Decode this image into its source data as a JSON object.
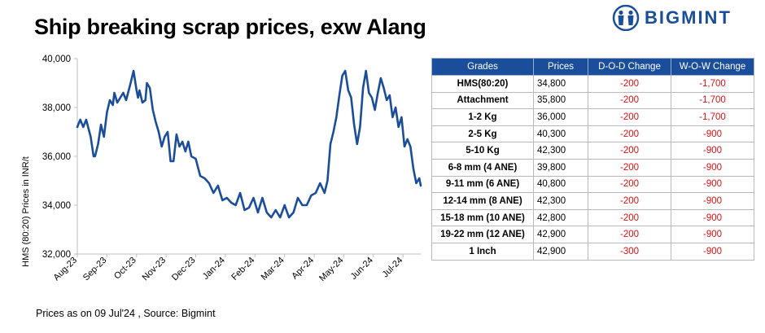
{
  "title": "Ship breaking scrap prices, exw Alang",
  "logo": {
    "text": "BIGMINT",
    "icon": "bigmint-people-icon",
    "color": "#1a4e9a"
  },
  "footer": "Prices as on 09 Jul'24 , Source: Bigmint",
  "chart_data": {
    "type": "line",
    "ylabel": "HMS (80:20) Prices in INR/t",
    "ylim": [
      32000,
      40000
    ],
    "yticks": [
      "32,000",
      "34,000",
      "36,000",
      "38,000",
      "40,000"
    ],
    "xticks": [
      "Aug-23",
      "Sep-23",
      "Oct-23",
      "Nov-23",
      "Dec-23",
      "Jan-24",
      "Feb-24",
      "Mar-24",
      "Apr-24",
      "May-24",
      "Jun-24",
      "Jul-24"
    ],
    "line_color": "#1a4e9a",
    "grid": false,
    "series": [
      {
        "x": [
          0,
          0.1,
          0.2,
          0.3,
          0.45,
          0.55,
          0.6,
          0.7,
          0.8,
          0.9,
          1.0,
          1.1,
          1.2,
          1.25,
          1.35,
          1.45,
          1.55,
          1.65,
          1.8,
          1.9,
          2.0,
          2.05,
          2.1,
          2.2,
          2.3,
          2.35,
          2.45,
          2.55,
          2.65,
          2.75,
          2.85,
          2.95,
          3.05,
          3.15,
          3.25,
          3.35,
          3.45,
          3.55,
          3.65,
          3.75,
          3.85,
          4.0,
          4.15,
          4.3,
          4.45,
          4.6,
          4.75,
          4.9,
          5.05,
          5.2,
          5.35,
          5.5,
          5.65,
          5.8,
          5.95,
          6.1,
          6.25,
          6.4,
          6.55,
          6.7,
          6.85,
          7.0,
          7.15,
          7.3,
          7.45,
          7.6,
          7.75,
          7.9,
          8.05,
          8.2,
          8.35,
          8.45,
          8.55,
          8.65,
          8.75,
          8.85,
          8.95,
          9.05,
          9.15,
          9.25,
          9.35,
          9.45,
          9.55,
          9.65,
          9.75,
          9.85,
          9.95,
          10.05,
          10.15,
          10.25,
          10.35,
          10.45,
          10.55,
          10.65,
          10.75,
          10.85,
          10.95,
          11.05,
          11.15,
          11.25,
          11.35,
          11.45,
          11.55,
          11.6
        ],
        "y": [
          37200,
          37500,
          37200,
          37500,
          36800,
          36000,
          36000,
          36500,
          37300,
          36800,
          37800,
          38300,
          38100,
          38600,
          38200,
          38400,
          38600,
          38300,
          39000,
          39500,
          38700,
          38400,
          38700,
          38200,
          38300,
          39000,
          38800,
          37900,
          37400,
          37000,
          36400,
          36800,
          37000,
          35800,
          35800,
          36900,
          36400,
          36600,
          36200,
          36600,
          36000,
          35900,
          35200,
          35100,
          34900,
          34500,
          34800,
          34200,
          34300,
          34100,
          34000,
          34500,
          33800,
          33900,
          34300,
          33700,
          34300,
          33700,
          33500,
          33800,
          33500,
          34000,
          33500,
          33700,
          34300,
          34000,
          34000,
          34400,
          34500,
          34900,
          34500,
          35000,
          36500,
          37000,
          37600,
          38500,
          39300,
          39500,
          38700,
          38400,
          37300,
          36500,
          37200,
          38800,
          39500,
          38600,
          38400,
          37900,
          38600,
          39200,
          38800,
          38300,
          38500,
          37600,
          38000,
          37200,
          37600,
          36400,
          36700,
          36400,
          35500,
          34900,
          35100,
          34800
        ]
      }
    ]
  },
  "table": {
    "headers": [
      "Grades",
      "Prices",
      "D-O-D Change",
      "W-O-W Change"
    ],
    "rows": [
      [
        "HMS(80:20)",
        "34,800",
        "-200",
        "-1,700"
      ],
      [
        "Attachment",
        "35,800",
        "-200",
        "-1,700"
      ],
      [
        "1-2 Kg",
        "36,000",
        "-200",
        "-1,700"
      ],
      [
        "2-5 Kg",
        "40,300",
        "-200",
        "-900"
      ],
      [
        "5-10 Kg",
        "42,300",
        "-200",
        "-900"
      ],
      [
        "6-8 mm (4 ANE)",
        "39,800",
        "-200",
        "-900"
      ],
      [
        "9-11 mm (6 ANE)",
        "40,800",
        "-200",
        "-900"
      ],
      [
        "12-14 mm (8 ANE)",
        "42,300",
        "-200",
        "-900"
      ],
      [
        "15-18 mm (10 ANE)",
        "42,800",
        "-200",
        "-900"
      ],
      [
        "19-22 mm (12 ANE)",
        "42,900",
        "-200",
        "-900"
      ],
      [
        "1 Inch",
        "42,900",
        "-300",
        "-900"
      ]
    ],
    "header_color": "#1a4e9a",
    "change_color": "#e01010"
  }
}
